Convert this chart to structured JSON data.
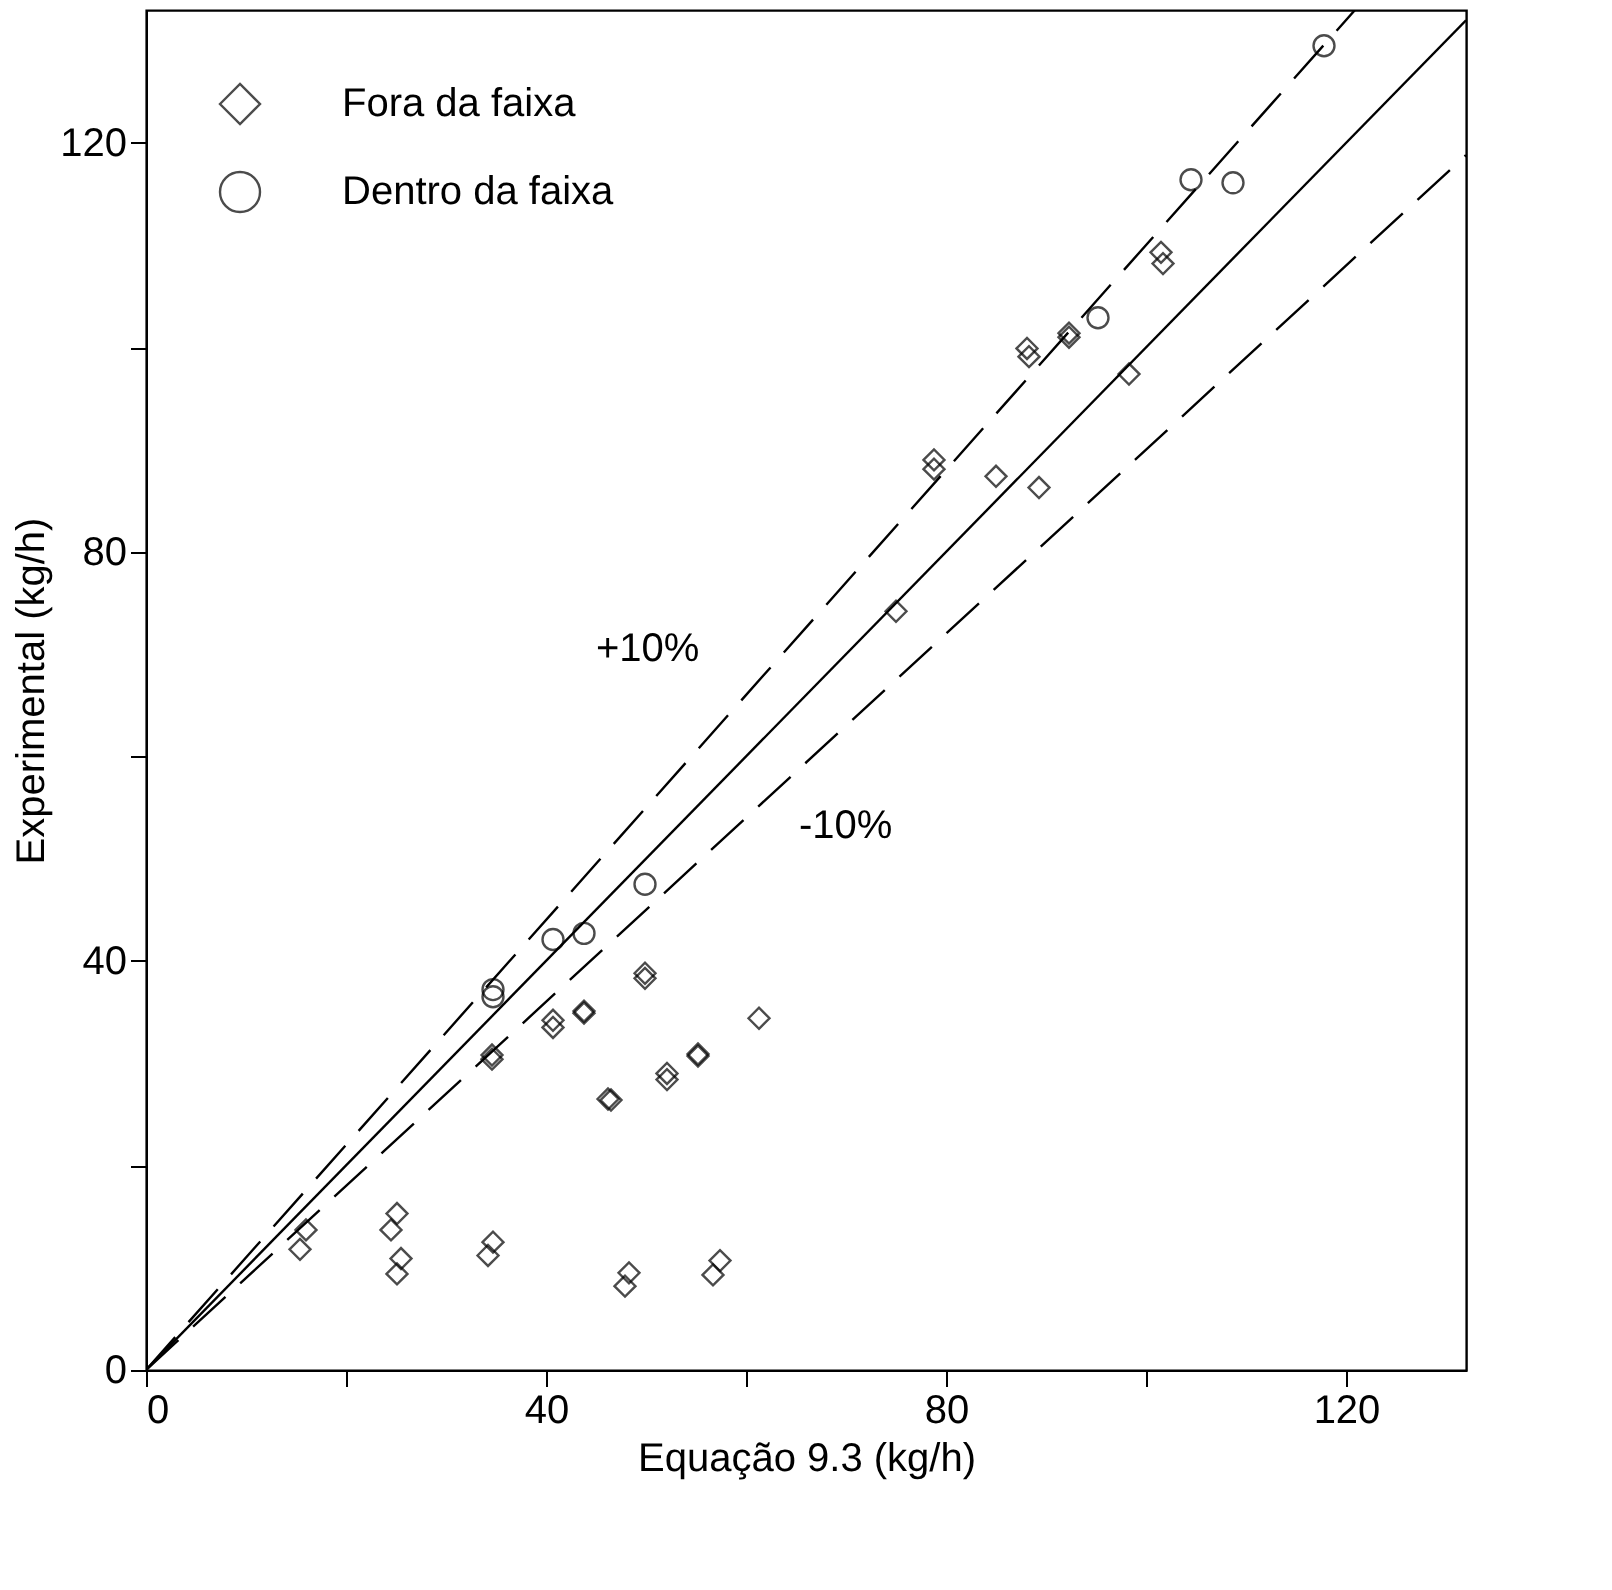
{
  "chart_data": {
    "type": "scatter",
    "xlabel": "Equação 9.3 (kg/h)",
    "ylabel": "Experimental (kg/h)",
    "xlim": [
      0,
      132
    ],
    "ylim": [
      0,
      133
    ],
    "xticks": [
      0,
      {
        "value": 20,
        "label": null
      },
      40,
      {
        "value": 60,
        "label": null
      },
      80,
      {
        "value": 100,
        "label": null
      },
      120
    ],
    "yticks": [
      0,
      {
        "value": 20,
        "label": null
      },
      40,
      {
        "value": 60,
        "label": null
      },
      80,
      {
        "value": 100,
        "label": null
      },
      120
    ],
    "grid": false,
    "legend": "top left",
    "series": [
      {
        "name": "Fora da faixa",
        "marker": "diamond",
        "color": "#000000",
        "x": [
          49.9,
          49.9,
          61.3,
          43.8,
          43.8,
          40.7,
          40.7,
          34.6,
          34.6,
          55.2,
          55.2,
          52.1,
          52.1,
          46.2,
          46.5,
          16.0,
          15.4,
          25.1,
          24.5,
          25.5,
          25.1,
          34.7,
          34.2,
          48.3,
          47.9,
          57.4,
          56.7,
          101.5,
          101.7,
          92.3,
          92.3,
          88.1,
          88.3,
          98.3,
          78.8,
          78.8,
          85.0,
          89.3,
          75.0
        ],
        "values": [
          38.8,
          38.3,
          34.4,
          35.1,
          34.9,
          34.2,
          33.5,
          30.8,
          30.4,
          30.9,
          30.7,
          29.0,
          28.4,
          26.5,
          26.4,
          13.7,
          11.8,
          15.3,
          13.7,
          10.9,
          9.4,
          12.5,
          11.2,
          9.5,
          8.2,
          10.7,
          9.3,
          109.3,
          108.2,
          101.4,
          101.0,
          99.9,
          99.1,
          97.4,
          89.0,
          88.1,
          87.4,
          86.3,
          74.2
        ]
      },
      {
        "name": "Dentro da faixa",
        "marker": "circle",
        "color": "#000000",
        "x": [
          49.9,
          43.8,
          40.7,
          34.7,
          34.7,
          117.8,
          104.5,
          108.7,
          95.2
        ],
        "values": [
          47.5,
          42.7,
          42.1,
          36.5,
          37.2,
          129.5,
          116.4,
          116.1,
          102.9
        ]
      },
      {
        "type": "line",
        "line_style": "solid",
        "color": "#000000",
        "x": [
          0,
          132
        ],
        "values": [
          0,
          132
        ]
      },
      {
        "type": "line",
        "line_style": "dashed",
        "color": "#000000",
        "x": [
          0,
          120.9
        ],
        "values": [
          0,
          133
        ]
      },
      {
        "type": "line",
        "line_style": "dashed",
        "color": "#000000",
        "x": [
          0,
          132
        ],
        "values": [
          0,
          118.8
        ]
      }
    ],
    "annotations": [
      "+10%",
      "-10%"
    ]
  }
}
